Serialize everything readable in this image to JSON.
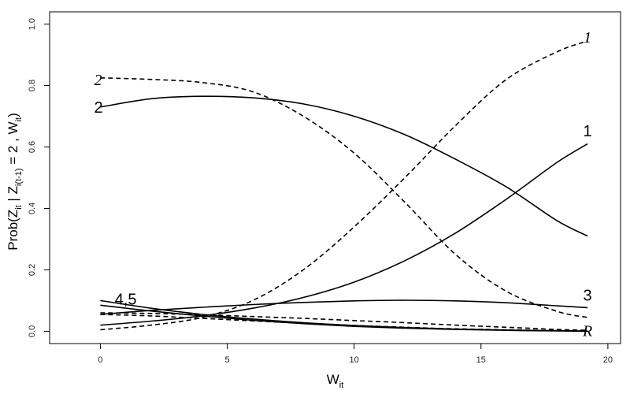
{
  "chart_data": {
    "type": "line",
    "xlabel": "W",
    "xlabel_sub": "it",
    "ylabel_parts": [
      "Prob(Z",
      "it",
      " | Z",
      "i(t-1)",
      " = 2 , W",
      "it",
      ")"
    ],
    "xlim": [
      -2,
      20.5
    ],
    "ylim": [
      -0.04,
      1.04
    ],
    "xticks": [
      0,
      5,
      10,
      15,
      20
    ],
    "yticks": [
      0.0,
      0.2,
      0.4,
      0.6,
      0.8,
      1.0
    ],
    "ytick_labels": [
      "0.0",
      "0.2",
      "0.4",
      "0.6",
      "0.8",
      "1.0"
    ],
    "grid": false,
    "series": [
      {
        "name": "1",
        "style": "solid",
        "x": [
          0,
          2,
          4,
          6,
          8,
          10,
          12,
          14,
          16,
          18,
          19.2
        ],
        "values": [
          0.02,
          0.033,
          0.05,
          0.075,
          0.11,
          0.16,
          0.23,
          0.32,
          0.43,
          0.55,
          0.61
        ]
      },
      {
        "name": "2",
        "style": "solid",
        "x": [
          0,
          2,
          4,
          6,
          8,
          10,
          12,
          14,
          16,
          18,
          19.2
        ],
        "values": [
          0.73,
          0.757,
          0.765,
          0.76,
          0.74,
          0.7,
          0.64,
          0.56,
          0.47,
          0.36,
          0.31
        ]
      },
      {
        "name": "3",
        "style": "solid",
        "x": [
          0,
          2,
          4,
          6,
          8,
          10,
          12,
          14,
          16,
          18,
          19.2
        ],
        "values": [
          0.055,
          0.068,
          0.078,
          0.087,
          0.094,
          0.099,
          0.101,
          0.099,
          0.093,
          0.083,
          0.077
        ]
      },
      {
        "name": "4",
        "style": "solid",
        "x": [
          0,
          2,
          4,
          6,
          8,
          10,
          12,
          14,
          16,
          18,
          19.2
        ],
        "values": [
          0.1,
          0.075,
          0.055,
          0.04,
          0.028,
          0.019,
          0.012,
          0.007,
          0.004,
          0.002,
          0.001
        ]
      },
      {
        "name": "5",
        "style": "solid",
        "x": [
          0,
          2,
          4,
          6,
          8,
          10,
          12,
          14,
          16,
          18,
          19.2
        ],
        "values": [
          0.085,
          0.066,
          0.05,
          0.036,
          0.025,
          0.016,
          0.01,
          0.006,
          0.003,
          0.001,
          0.0
        ]
      },
      {
        "name": "1",
        "style": "dashed",
        "x": [
          0,
          2,
          4,
          6,
          8,
          10,
          12,
          14,
          16,
          18,
          19.2
        ],
        "values": [
          0.005,
          0.02,
          0.045,
          0.1,
          0.2,
          0.34,
          0.5,
          0.67,
          0.82,
          0.91,
          0.945
        ]
      },
      {
        "name": "2",
        "style": "dashed",
        "x": [
          0,
          2,
          4,
          6,
          8,
          10,
          12,
          14,
          16,
          18,
          19.2
        ],
        "values": [
          0.825,
          0.82,
          0.81,
          0.78,
          0.7,
          0.58,
          0.42,
          0.25,
          0.13,
          0.065,
          0.045
        ]
      },
      {
        "name": "R",
        "style": "dashed",
        "x": [
          0,
          2,
          4,
          6,
          8,
          10,
          12,
          14,
          16,
          18,
          19.2
        ],
        "values": [
          0.06,
          0.058,
          0.054,
          0.048,
          0.042,
          0.035,
          0.028,
          0.02,
          0.013,
          0.006,
          0.003
        ]
      },
      {
        "name": "",
        "style": "dashed",
        "x": [
          0,
          2,
          4,
          6,
          8,
          10,
          12,
          14,
          16,
          18,
          19.2
        ],
        "values": [
          0.055,
          0.05,
          0.042,
          0.034,
          0.026,
          0.019,
          0.013,
          0.008,
          0.005,
          0.002,
          0.001
        ]
      }
    ],
    "annotations": [
      {
        "text": "2",
        "italic": true,
        "x": 0.0,
        "y": 0.82
      },
      {
        "text": "2",
        "italic": false,
        "x": 0.0,
        "y": 0.73
      },
      {
        "text": "1",
        "italic": true,
        "x": 19.2,
        "y": 0.945
      },
      {
        "text": "1",
        "italic": false,
        "x": 19.2,
        "y": 0.64
      },
      {
        "text": "4,5",
        "italic": false,
        "x": 1.0,
        "y": 0.105
      },
      {
        "text": "3",
        "italic": false,
        "x": 19.2,
        "y": 0.105
      },
      {
        "text": "R",
        "italic": true,
        "x": 19.2,
        "y": -0.01
      }
    ]
  }
}
